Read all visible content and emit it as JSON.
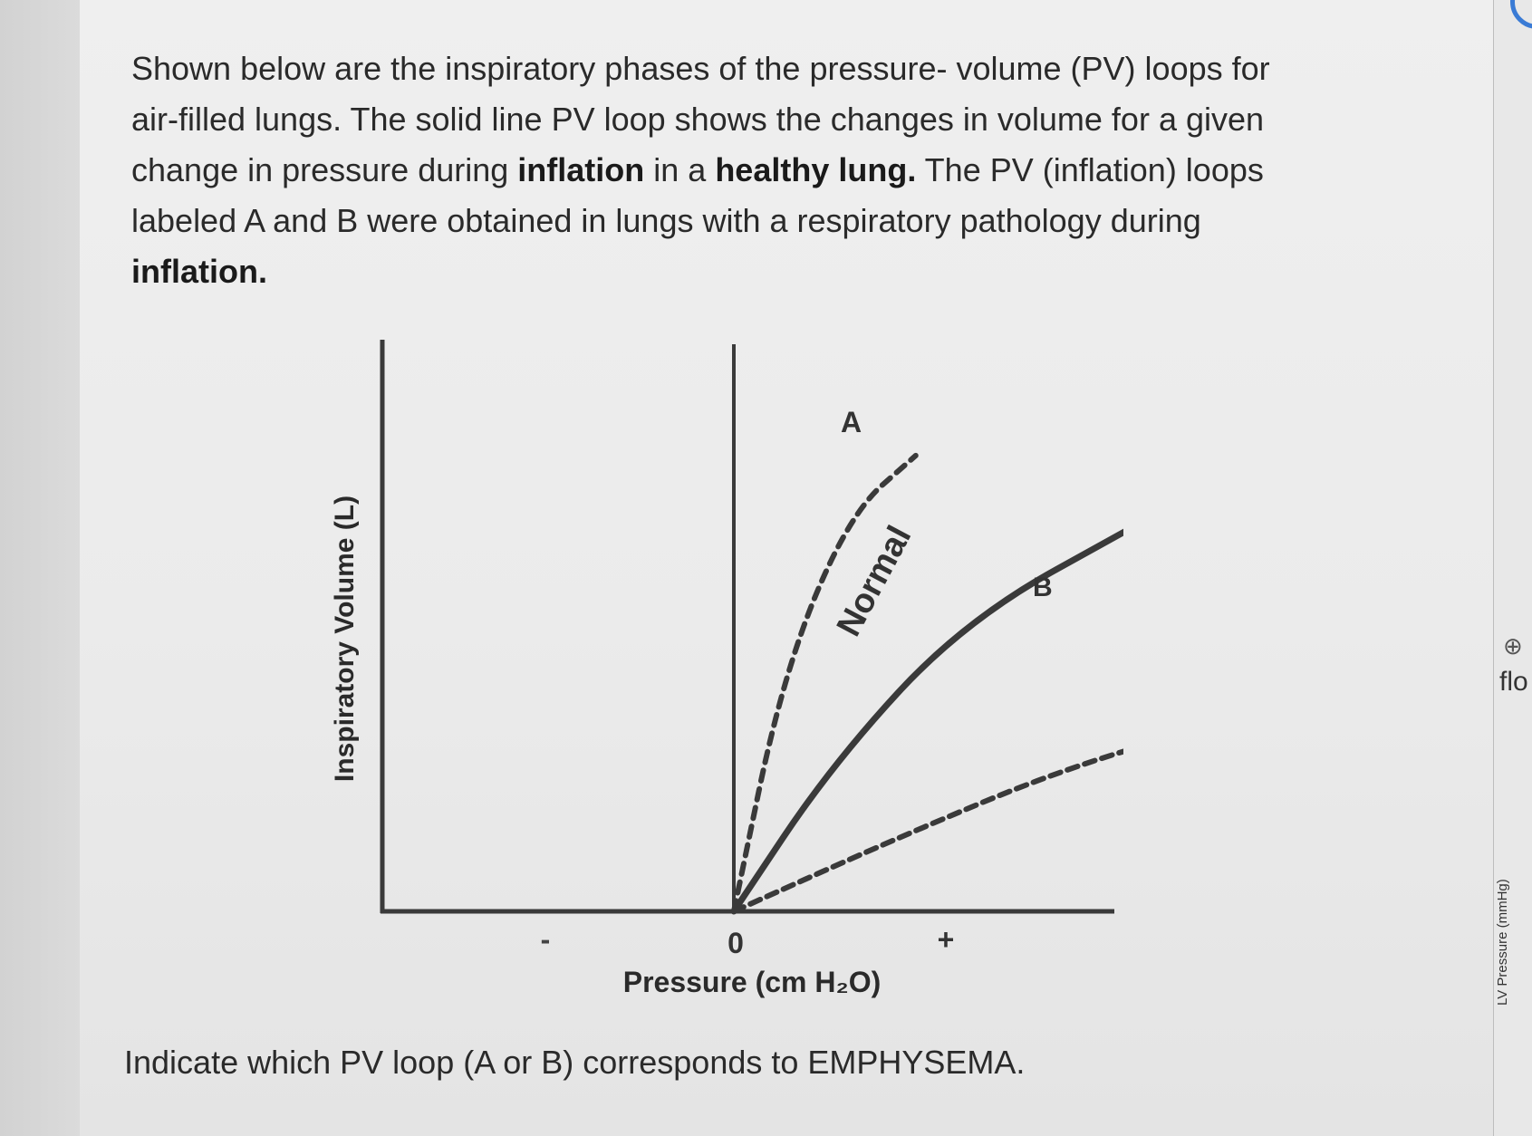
{
  "question": {
    "p1": "Shown below are the inspiratory phases of the pressure- volume (PV) loops for air-filled lungs. The solid line PV loop shows the changes in volume for a given change in pressure during ",
    "b1": "inflation",
    "p2": " in a ",
    "b2": "healthy lung.",
    "p3": " The PV (inflation) loops labeled A and B were obtained in lungs with a respiratory pathology during ",
    "b3": "inflation."
  },
  "chart_data": {
    "type": "line",
    "xlabel": "Pressure (cm H₂O)",
    "ylabel": "Inspiratory Volume (L)",
    "x_ticks": [
      "-",
      "0",
      "+"
    ],
    "series": [
      {
        "name": "A",
        "style": "dashed",
        "x": [
          0,
          0.15,
          0.35,
          0.55
        ],
        "y": [
          0,
          0.45,
          0.75,
          0.86
        ]
      },
      {
        "name": "Normal",
        "style": "solid",
        "x": [
          0,
          0.3,
          0.7,
          1.25
        ],
        "y": [
          0,
          0.28,
          0.55,
          0.74
        ]
      },
      {
        "name": "B",
        "style": "dashed",
        "x": [
          0,
          0.5,
          1.0,
          1.5
        ],
        "y": [
          0,
          0.14,
          0.27,
          0.36
        ]
      }
    ]
  },
  "footer_question": "Indicate which PV loop (A or B) corresponds to EMPHYSEMA.",
  "right_panel": {
    "icon": "crosshair-circle-icon",
    "label": "flo",
    "axis_label": "LV Pressure (mmHg)"
  },
  "colors": {
    "text": "#2a2a2a",
    "line": "#3a3a3a",
    "accent": "#3a7bd5"
  }
}
